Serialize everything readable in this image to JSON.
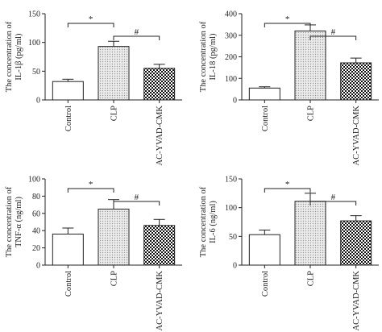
{
  "chart_data": [
    {
      "type": "bar",
      "ylabel": "The concentration of IL-1β (pg/ml)",
      "ylabel_lines": [
        "The concentration of",
        "IL-1β (pg/ml)"
      ],
      "categories": [
        "Control",
        "CLP",
        "AC-YVAD-CMK"
      ],
      "values": [
        32,
        93,
        55
      ],
      "errors": [
        4,
        9,
        7
      ],
      "ylim": [
        0,
        150
      ],
      "yticks": [
        0,
        50,
        100,
        150
      ],
      "significance": [
        {
          "from": 0,
          "to": 1,
          "label": "*"
        },
        {
          "from": 1,
          "to": 2,
          "label": "#"
        }
      ]
    },
    {
      "type": "bar",
      "ylabel": "The concentration of IL-18 (pg/ml)",
      "ylabel_lines": [
        "The concentration of",
        "IL-18 (pg/ml)"
      ],
      "categories": [
        "Control",
        "CLP",
        "AC-YVAD-CMK"
      ],
      "values": [
        55,
        320,
        172
      ],
      "errors": [
        6,
        28,
        22
      ],
      "ylim": [
        0,
        400
      ],
      "yticks": [
        0,
        100,
        200,
        300,
        400
      ],
      "significance": [
        {
          "from": 0,
          "to": 1,
          "label": "*"
        },
        {
          "from": 1,
          "to": 2,
          "label": "#"
        }
      ]
    },
    {
      "type": "bar",
      "ylabel": "The concentration of TNF-α (ng/ml)",
      "ylabel_lines": [
        "The concentration of",
        "TNF-α (ng/ml)"
      ],
      "categories": [
        "Control",
        "CLP",
        "AC-YVAD-CMK"
      ],
      "values": [
        36,
        65,
        46
      ],
      "errors": [
        7,
        11,
        7
      ],
      "ylim": [
        0,
        100
      ],
      "yticks": [
        0,
        20,
        40,
        60,
        80,
        100
      ],
      "significance": [
        {
          "from": 0,
          "to": 1,
          "label": "*"
        },
        {
          "from": 1,
          "to": 2,
          "label": "#"
        }
      ]
    },
    {
      "type": "bar",
      "ylabel": "The concentration of IL-6 (ng/ml)",
      "ylabel_lines": [
        "The concentration of",
        "IL-6 (ng/ml)"
      ],
      "categories": [
        "Control",
        "CLP",
        "AC-YVAD-CMK"
      ],
      "values": [
        53,
        111,
        77
      ],
      "errors": [
        8,
        14,
        9
      ],
      "ylim": [
        0,
        150
      ],
      "yticks": [
        0,
        50,
        100,
        150
      ],
      "significance": [
        {
          "from": 0,
          "to": 1,
          "label": "*"
        },
        {
          "from": 1,
          "to": 2,
          "label": "#"
        }
      ]
    }
  ]
}
